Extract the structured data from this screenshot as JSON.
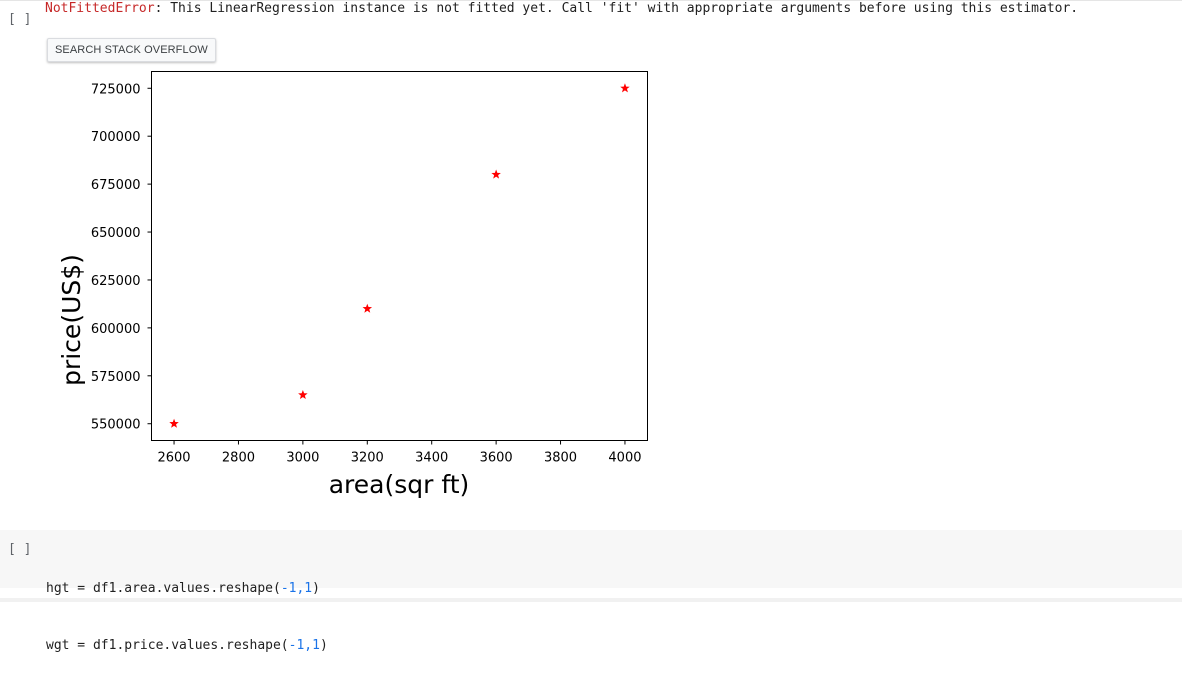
{
  "output_cell": {
    "run_indicator": "[ ]",
    "error": {
      "name": "NotFittedError",
      "message": ": This LinearRegression instance is not fitted yet. Call 'fit' with appropriate arguments before using this estimator."
    },
    "search_button": "SEARCH STACK OVERFLOW"
  },
  "chart_data": {
    "type": "scatter",
    "marker": "star",
    "color": "#ff0000",
    "x": [
      2600,
      3000,
      3200,
      3600,
      4000
    ],
    "y": [
      550000,
      565000,
      610000,
      680000,
      725000
    ],
    "xlabel": "area(sqr ft)",
    "ylabel": "price(US$)",
    "xticks": [
      "2600",
      "2800",
      "3000",
      "3200",
      "3400",
      "3600",
      "3800",
      "4000"
    ],
    "yticks": [
      "550000",
      "575000",
      "600000",
      "625000",
      "650000",
      "675000",
      "700000",
      "725000"
    ],
    "xlim": [
      2530,
      4070
    ],
    "ylim": [
      541250,
      733750
    ],
    "grid": false
  },
  "code_cell": {
    "run_indicator": "[ ]",
    "lines": [
      {
        "pre": "hgt = df1.area.values.reshape(",
        "args": "-1,1",
        "post": ")"
      },
      {
        "pre": "wgt = df1.price.values.reshape(",
        "args": "-1,1",
        "post": ")"
      }
    ]
  }
}
